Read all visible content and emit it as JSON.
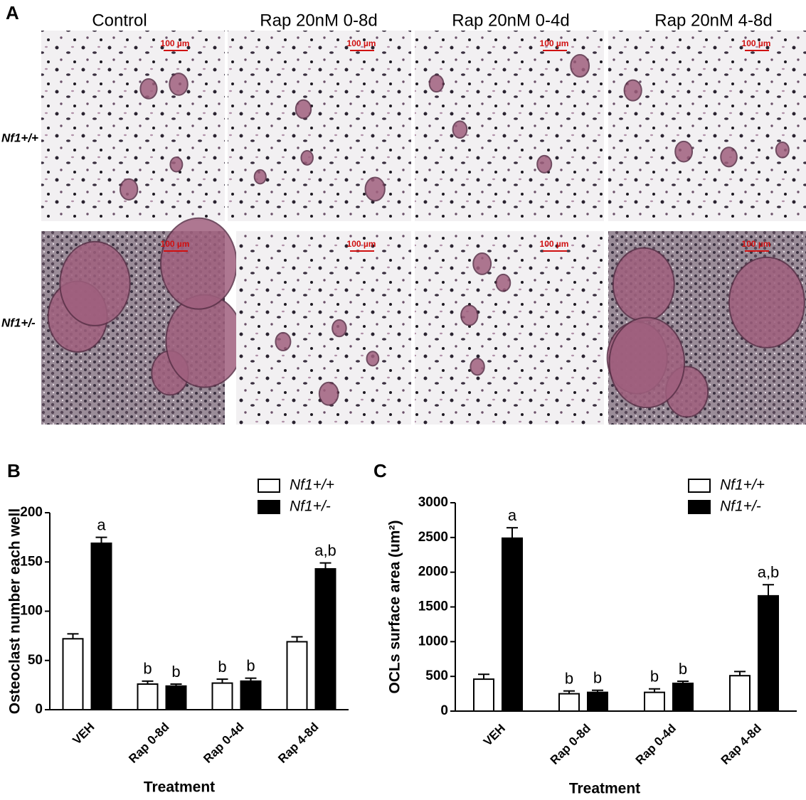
{
  "panel_a": {
    "label": "A",
    "columns": [
      "Control",
      "Rap 20nM 0-8d",
      "Rap 20nM 0-4d",
      "Rap 20nM 4-8d"
    ],
    "rows": [
      "Nf1+/+",
      "Nf1+/-"
    ],
    "scale_bar": "100 µm"
  },
  "chart_data": [
    {
      "type": "bar",
      "panel": "B",
      "y_label": "Osteoclast number each well",
      "x_label": "Treatment",
      "categories": [
        "VEH",
        "Rap 0-8d",
        "Rap 0-4d",
        "Rap 4-8d"
      ],
      "series": [
        {
          "name": "Nf1+/+",
          "color": "#ffffff",
          "values": [
            72,
            26,
            27,
            69
          ],
          "errors": [
            5,
            3,
            4,
            5
          ],
          "annotations": [
            null,
            "b",
            "b",
            null
          ]
        },
        {
          "name": "Nf1+/-",
          "color": "#000000",
          "values": [
            169,
            24,
            29,
            143
          ],
          "errors": [
            6,
            2,
            3,
            6
          ],
          "annotations": [
            "a",
            "b",
            "b",
            "a,b"
          ]
        }
      ],
      "ylim": [
        0,
        200
      ],
      "yticks": [
        0,
        50,
        100,
        150,
        200
      ]
    },
    {
      "type": "bar",
      "panel": "C",
      "y_label": "OCLs surface area (um²)",
      "x_label": "Treatment",
      "categories": [
        "VEH",
        "Rap 0-8d",
        "Rap 0-4d",
        "Rap 4-8d"
      ],
      "series": [
        {
          "name": "Nf1+/+",
          "color": "#ffffff",
          "values": [
            460,
            250,
            270,
            510
          ],
          "errors": [
            70,
            40,
            50,
            60
          ],
          "annotations": [
            null,
            "b",
            "b",
            null
          ]
        },
        {
          "name": "Nf1+/-",
          "color": "#000000",
          "values": [
            2490,
            270,
            400,
            1660
          ],
          "errors": [
            150,
            30,
            30,
            160
          ],
          "annotations": [
            "a",
            "b",
            "b",
            "a,b"
          ]
        }
      ],
      "ylim": [
        0,
        3000
      ],
      "yticks": [
        0,
        500,
        1000,
        1500,
        2000,
        2500,
        3000
      ]
    }
  ]
}
